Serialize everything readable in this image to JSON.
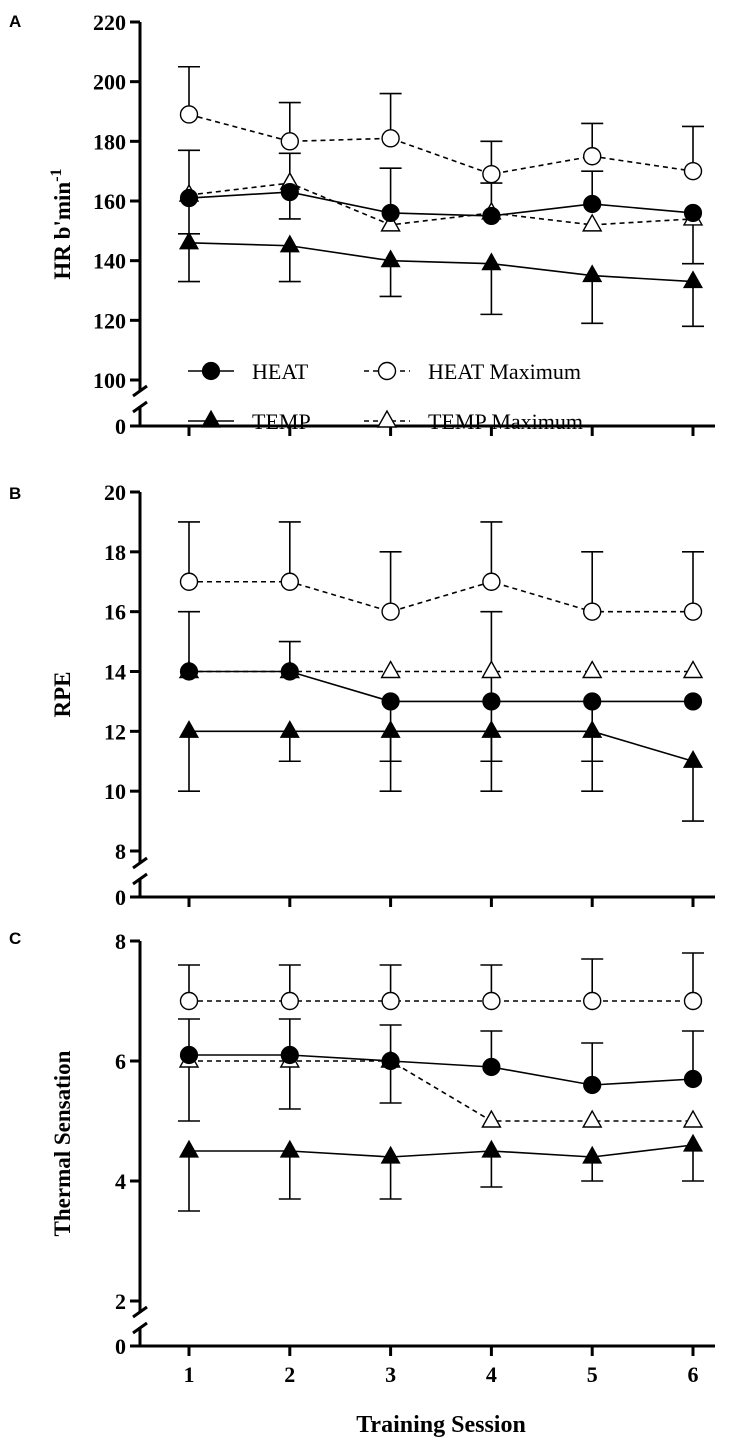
{
  "chart_data": [
    {
      "panel": "A",
      "type": "line",
      "ylabel": "HR b'min",
      "ylabel_sup": "-1",
      "xlabel": "",
      "x": [
        1,
        2,
        3,
        4,
        5,
        6
      ],
      "xlim": [
        0.5,
        6.2
      ],
      "ylim": [
        100,
        220
      ],
      "y_ticks": [
        100,
        120,
        140,
        160,
        180,
        200,
        220
      ],
      "y_zero_label": "0",
      "axis_break": true,
      "legend_position": "lower-center",
      "series": [
        {
          "name": "HEAT",
          "marker": "filled-circle",
          "line": "solid",
          "values": [
            161,
            163,
            156,
            155,
            159,
            156
          ],
          "err_upper": [
            177,
            176,
            171,
            166,
            170,
            null
          ],
          "err_lower": [
            149,
            154,
            null,
            null,
            null,
            null
          ]
        },
        {
          "name": "TEMP",
          "marker": "filled-triangle",
          "line": "solid",
          "values": [
            146,
            145,
            140,
            139,
            135,
            133
          ],
          "err_upper": [
            null,
            null,
            null,
            null,
            null,
            null
          ],
          "err_lower": [
            133,
            133,
            128,
            122,
            119,
            118
          ]
        },
        {
          "name": "HEAT Maximum",
          "marker": "open-circle",
          "line": "dashed",
          "values": [
            189,
            180,
            181,
            169,
            175,
            170
          ],
          "err_upper": [
            205,
            193,
            196,
            180,
            186,
            185
          ],
          "err_lower": [
            null,
            null,
            null,
            null,
            null,
            null
          ]
        },
        {
          "name": "TEMP Maximum",
          "marker": "open-triangle",
          "line": "dashed",
          "values": [
            162,
            166,
            152,
            156,
            152,
            154
          ],
          "err_upper": [
            null,
            null,
            null,
            null,
            null,
            null
          ],
          "err_lower": [
            null,
            null,
            null,
            null,
            null,
            139
          ]
        }
      ]
    },
    {
      "panel": "B",
      "type": "line",
      "ylabel": "RPE",
      "xlabel": "",
      "x": [
        1,
        2,
        3,
        4,
        5,
        6
      ],
      "xlim": [
        0.5,
        6.2
      ],
      "ylim": [
        8,
        20
      ],
      "y_ticks": [
        8,
        10,
        12,
        14,
        16,
        18,
        20
      ],
      "y_zero_label": "0",
      "axis_break": true,
      "series": [
        {
          "name": "HEAT",
          "marker": "filled-circle",
          "line": "solid",
          "values": [
            14,
            14,
            13,
            13,
            13,
            13
          ],
          "err_upper": [
            16,
            15,
            null,
            16,
            null,
            null
          ],
          "err_lower": [
            null,
            null,
            11,
            11,
            11,
            null
          ]
        },
        {
          "name": "TEMP",
          "marker": "filled-triangle",
          "line": "solid",
          "values": [
            12,
            12,
            12,
            12,
            12,
            11
          ],
          "err_upper": [
            null,
            null,
            null,
            null,
            null,
            null
          ],
          "err_lower": [
            10,
            11,
            10,
            10,
            10,
            9
          ]
        },
        {
          "name": "HEAT Maximum",
          "marker": "open-circle",
          "line": "dashed",
          "values": [
            17,
            17,
            16,
            17,
            16,
            16
          ],
          "err_upper": [
            19,
            19,
            18,
            19,
            18,
            18
          ],
          "err_lower": [
            null,
            null,
            null,
            null,
            null,
            null
          ]
        },
        {
          "name": "TEMP Maximum",
          "marker": "open-triangle",
          "line": "dashed",
          "values": [
            14,
            14,
            14,
            14,
            14,
            14
          ],
          "err_upper": [
            null,
            null,
            null,
            null,
            null,
            null
          ],
          "err_lower": [
            null,
            null,
            null,
            null,
            null,
            null
          ]
        }
      ]
    },
    {
      "panel": "C",
      "type": "line",
      "ylabel": "Thermal Sensation",
      "xlabel": "Training Session",
      "x": [
        1,
        2,
        3,
        4,
        5,
        6
      ],
      "xlim": [
        0.5,
        6.2
      ],
      "ylim": [
        2,
        8
      ],
      "y_ticks": [
        2,
        4,
        6,
        8
      ],
      "y_zero_label": "0",
      "axis_break": true,
      "series": [
        {
          "name": "HEAT",
          "marker": "filled-circle",
          "line": "solid",
          "values": [
            6.1,
            6.1,
            6.0,
            5.9,
            5.6,
            5.7
          ],
          "err_upper": [
            6.7,
            6.7,
            6.6,
            6.5,
            6.3,
            6.5
          ],
          "err_lower": [
            null,
            null,
            null,
            null,
            null,
            null
          ]
        },
        {
          "name": "TEMP",
          "marker": "filled-triangle",
          "line": "solid",
          "values": [
            4.5,
            4.5,
            4.4,
            4.5,
            4.4,
            4.6
          ],
          "err_upper": [
            null,
            null,
            null,
            null,
            null,
            null
          ],
          "err_lower": [
            3.5,
            3.7,
            3.7,
            3.9,
            4.0,
            4.0
          ]
        },
        {
          "name": "HEAT Maximum",
          "marker": "open-circle",
          "line": "dashed",
          "values": [
            7,
            7,
            7,
            7,
            7,
            7
          ],
          "err_upper": [
            7.6,
            7.6,
            7.6,
            7.6,
            7.7,
            7.8
          ],
          "err_lower": [
            null,
            null,
            null,
            null,
            null,
            null
          ]
        },
        {
          "name": "TEMP Maximum",
          "marker": "open-triangle",
          "line": "dashed",
          "values": [
            6,
            6,
            6,
            5,
            5,
            5
          ],
          "err_upper": [
            null,
            null,
            null,
            null,
            null,
            null
          ],
          "err_lower": [
            5.0,
            5.2,
            5.3,
            null,
            null,
            null
          ]
        }
      ]
    }
  ]
}
